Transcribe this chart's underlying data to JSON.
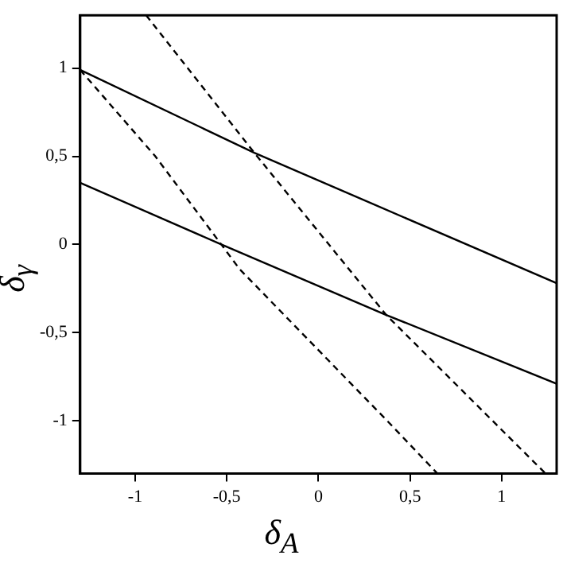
{
  "chart_data": {
    "type": "line",
    "xlabel": "δ$_{A}$",
    "ylabel": "δ$_{γ}$",
    "xlim": [
      -1.3,
      1.3
    ],
    "ylim": [
      -1.3,
      1.3
    ],
    "xticks": [
      {
        "value": -1,
        "label": "-1"
      },
      {
        "value": -0.5,
        "label": "-0,5"
      },
      {
        "value": 0,
        "label": "0"
      },
      {
        "value": 0.5,
        "label": "0,5"
      },
      {
        "value": 1,
        "label": "1"
      }
    ],
    "yticks": [
      {
        "value": -1,
        "label": "-1"
      },
      {
        "value": -0.5,
        "label": "-0,5"
      },
      {
        "value": 0,
        "label": "0"
      },
      {
        "value": 0.5,
        "label": "0,5"
      },
      {
        "value": 1,
        "label": "1"
      }
    ],
    "grid": false,
    "legend": false,
    "marker": "none",
    "series": [
      {
        "color": "#000000",
        "line_style": "solid",
        "x": [
          -1.3,
          -0.35,
          1.3
        ],
        "values": [
          0.99,
          0.52,
          -0.22
        ]
      },
      {
        "color": "#000000",
        "line_style": "solid",
        "x": [
          -1.3,
          -0.53,
          0.37,
          1.3
        ],
        "values": [
          0.35,
          0,
          -0.4,
          -0.79
        ]
      },
      {
        "color": "#000000",
        "line_style": "dashed",
        "x": [
          -1.3,
          -0.89,
          -0.53,
          -0.43,
          0.375,
          0.65
        ],
        "values": [
          0.99,
          0.5,
          0,
          -0.14,
          -1.0,
          -1.3
        ]
      },
      {
        "color": "#000000",
        "line_style": "dashed",
        "x": [
          -0.94,
          -0.35,
          0.37,
          1.24
        ],
        "values": [
          1.3,
          0.52,
          -0.4,
          -1.3
        ]
      }
    ]
  }
}
